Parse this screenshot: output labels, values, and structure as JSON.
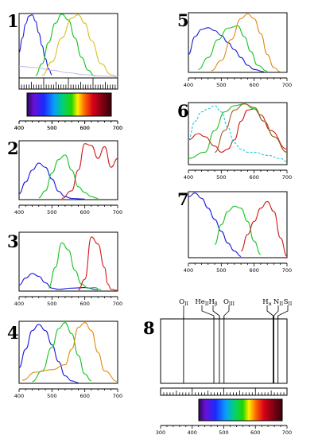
{
  "panel_numbers": [
    "1",
    "2",
    "3",
    "4",
    "5",
    "6",
    "7",
    "8"
  ],
  "tick_labels": [
    "400",
    "500",
    "600",
    "700"
  ],
  "tick_labels_8": [
    "300",
    "400",
    "500",
    "600",
    "700"
  ],
  "line_labels": [
    "O",
    "He",
    "H",
    "O",
    "H",
    "N",
    "S"
  ],
  "line_subs": [
    "II",
    "II",
    "β",
    "III",
    "α",
    "II",
    "II"
  ],
  "colors": {
    "blue": "#1a1adf",
    "green": "#19c423",
    "orange": "#e08a12",
    "yellow": "#d7c21c",
    "red": "#d21c1c",
    "cyan": "#20c8dc",
    "violet": "#c8b8e8",
    "brown": "#9b5e1e"
  },
  "chart_data": [
    {
      "panel": "1",
      "type": "line",
      "xlim": [
        400,
        700
      ],
      "series": [
        {
          "color": "blue",
          "x": [
            400,
            410,
            420,
            430,
            440,
            450,
            460,
            470,
            480,
            490,
            500
          ],
          "y": [
            0.4,
            0.62,
            0.84,
            0.96,
            0.98,
            0.88,
            0.7,
            0.5,
            0.3,
            0.14,
            0.05
          ]
        },
        {
          "color": "green",
          "x": [
            450,
            470,
            490,
            510,
            530,
            550,
            570,
            590,
            610,
            630
          ],
          "y": [
            0.04,
            0.22,
            0.55,
            0.85,
            0.99,
            0.9,
            0.62,
            0.32,
            0.12,
            0.03
          ]
        },
        {
          "color": "yellow",
          "x": [
            470,
            500,
            530,
            560,
            580,
            600,
            620,
            650,
            680,
            700
          ],
          "y": [
            0.04,
            0.25,
            0.62,
            0.93,
            0.98,
            0.85,
            0.58,
            0.22,
            0.05,
            0.02
          ]
        },
        {
          "color": "violet",
          "x": [
            400,
            450,
            500,
            550,
            600,
            650,
            700
          ],
          "y": [
            0.18,
            0.16,
            0.12,
            0.08,
            0.05,
            0.03,
            0.02
          ]
        }
      ]
    },
    {
      "panel": "2",
      "type": "line",
      "xlim": [
        400,
        700
      ],
      "series": [
        {
          "color": "blue",
          "x": [
            400,
            420,
            440,
            460,
            480,
            500,
            520,
            540,
            560,
            600
          ],
          "y": [
            0.1,
            0.3,
            0.5,
            0.62,
            0.55,
            0.35,
            0.14,
            0.05,
            0.02,
            0.01
          ]
        },
        {
          "color": "green",
          "x": [
            460,
            480,
            500,
            520,
            540,
            560,
            580,
            600,
            620,
            640
          ],
          "y": [
            0.03,
            0.15,
            0.45,
            0.68,
            0.76,
            0.5,
            0.22,
            0.12,
            0.05,
            0.02
          ]
        },
        {
          "color": "red",
          "x": [
            530,
            560,
            580,
            600,
            620,
            640,
            660,
            680,
            700
          ],
          "y": [
            0.02,
            0.15,
            0.5,
            0.95,
            0.92,
            0.7,
            0.9,
            0.55,
            0.7
          ]
        }
      ]
    },
    {
      "panel": "3",
      "type": "line",
      "xlim": [
        400,
        700
      ],
      "series": [
        {
          "color": "blue",
          "x": [
            400,
            420,
            440,
            460,
            480,
            500,
            520,
            560,
            600,
            640
          ],
          "y": [
            0.1,
            0.22,
            0.3,
            0.25,
            0.14,
            0.05,
            0.03,
            0.05,
            0.06,
            0.02
          ]
        },
        {
          "color": "green",
          "x": [
            490,
            510,
            530,
            550,
            570,
            590,
            610,
            630,
            650
          ],
          "y": [
            0.05,
            0.4,
            0.82,
            0.7,
            0.35,
            0.12,
            0.05,
            0.06,
            0.02
          ]
        },
        {
          "color": "red",
          "x": [
            580,
            600,
            620,
            640,
            660,
            670,
            680,
            700
          ],
          "y": [
            0.02,
            0.2,
            0.92,
            0.8,
            0.4,
            0.12,
            0.03,
            0.01
          ]
        }
      ]
    },
    {
      "panel": "4",
      "type": "line",
      "xlim": [
        400,
        700
      ],
      "series": [
        {
          "color": "blue",
          "x": [
            400,
            420,
            440,
            460,
            480,
            500,
            520,
            540,
            560,
            580
          ],
          "y": [
            0.25,
            0.55,
            0.85,
            0.95,
            0.85,
            0.62,
            0.35,
            0.12,
            0.04,
            0.01
          ]
        },
        {
          "color": "green",
          "x": [
            440,
            470,
            500,
            520,
            540,
            560,
            580,
            600,
            620
          ],
          "y": [
            0.03,
            0.2,
            0.58,
            0.88,
            0.98,
            0.8,
            0.45,
            0.15,
            0.04
          ]
        },
        {
          "color": "orange",
          "x": [
            410,
            450,
            500,
            540,
            560,
            580,
            600,
            620,
            640,
            660,
            700
          ],
          "y": [
            0.05,
            0.18,
            0.22,
            0.3,
            0.55,
            0.9,
            0.98,
            0.85,
            0.5,
            0.2,
            0.03
          ]
        }
      ]
    },
    {
      "panel": "5",
      "type": "line",
      "xlim": [
        400,
        700
      ],
      "series": [
        {
          "color": "blue",
          "x": [
            400,
            420,
            440,
            460,
            480,
            500,
            520,
            540,
            560,
            580,
            600,
            630
          ],
          "y": [
            0.3,
            0.6,
            0.72,
            0.75,
            0.7,
            0.62,
            0.5,
            0.38,
            0.25,
            0.12,
            0.05,
            0.01
          ]
        },
        {
          "color": "green",
          "x": [
            430,
            460,
            490,
            520,
            550,
            570,
            590,
            610,
            640
          ],
          "y": [
            0.05,
            0.25,
            0.55,
            0.74,
            0.78,
            0.6,
            0.35,
            0.12,
            0.02
          ]
        },
        {
          "color": "orange",
          "x": [
            470,
            500,
            530,
            560,
            580,
            600,
            620,
            640,
            660,
            680
          ],
          "y": [
            0.03,
            0.2,
            0.55,
            0.9,
            0.98,
            0.9,
            0.65,
            0.3,
            0.08,
            0.01
          ]
        }
      ]
    },
    {
      "panel": "6",
      "type": "line",
      "xlim": [
        400,
        700
      ],
      "series": [
        {
          "color": "red",
          "x": [
            400,
            430,
            450,
            480,
            500,
            520,
            540,
            560,
            580,
            600,
            620,
            650,
            700
          ],
          "y": [
            0.4,
            0.5,
            0.45,
            0.3,
            0.2,
            0.25,
            0.4,
            0.7,
            0.88,
            0.9,
            0.8,
            0.55,
            0.25
          ]
        },
        {
          "color": "green",
          "x": [
            400,
            450,
            480,
            510,
            540,
            570,
            600,
            630,
            660,
            700
          ],
          "y": [
            0.1,
            0.2,
            0.55,
            0.85,
            0.95,
            0.98,
            0.9,
            0.7,
            0.45,
            0.2
          ]
        },
        {
          "color": "cyan",
          "x": [
            400,
            420,
            440,
            460,
            480,
            500,
            520,
            540,
            560,
            580,
            600,
            640,
            680,
            700
          ],
          "y": [
            0.4,
            0.7,
            0.85,
            0.9,
            0.95,
            0.85,
            0.6,
            0.35,
            0.25,
            0.2,
            0.2,
            0.15,
            0.1,
            0.05
          ]
        },
        {
          "color": "brown",
          "x": [
            480,
            510,
            540,
            570,
            600,
            630,
            660,
            700
          ],
          "y": [
            0.2,
            0.55,
            0.88,
            0.98,
            0.92,
            0.7,
            0.45,
            0.2
          ]
        }
      ]
    },
    {
      "panel": "7",
      "type": "line",
      "xlim": [
        400,
        700
      ],
      "series": [
        {
          "color": "blue",
          "x": [
            400,
            420,
            440,
            460,
            480,
            500,
            520,
            540,
            560
          ],
          "y": [
            0.92,
            0.98,
            0.9,
            0.75,
            0.58,
            0.4,
            0.22,
            0.1,
            0.02
          ]
        },
        {
          "color": "green",
          "x": [
            480,
            500,
            520,
            540,
            560,
            580,
            600,
            620
          ],
          "y": [
            0.2,
            0.5,
            0.7,
            0.78,
            0.75,
            0.55,
            0.25,
            0.05
          ]
        },
        {
          "color": "red",
          "x": [
            560,
            580,
            600,
            620,
            640,
            660,
            680,
            700
          ],
          "y": [
            0.1,
            0.35,
            0.55,
            0.75,
            0.85,
            0.7,
            0.3,
            0.02
          ]
        }
      ]
    },
    {
      "panel": "8",
      "type": "spectral_lines",
      "xlim": [
        300,
        700
      ],
      "lines_nm": [
        372.7,
        468.6,
        486.1,
        500.7,
        656.3,
        658.4,
        671.6
      ]
    }
  ]
}
